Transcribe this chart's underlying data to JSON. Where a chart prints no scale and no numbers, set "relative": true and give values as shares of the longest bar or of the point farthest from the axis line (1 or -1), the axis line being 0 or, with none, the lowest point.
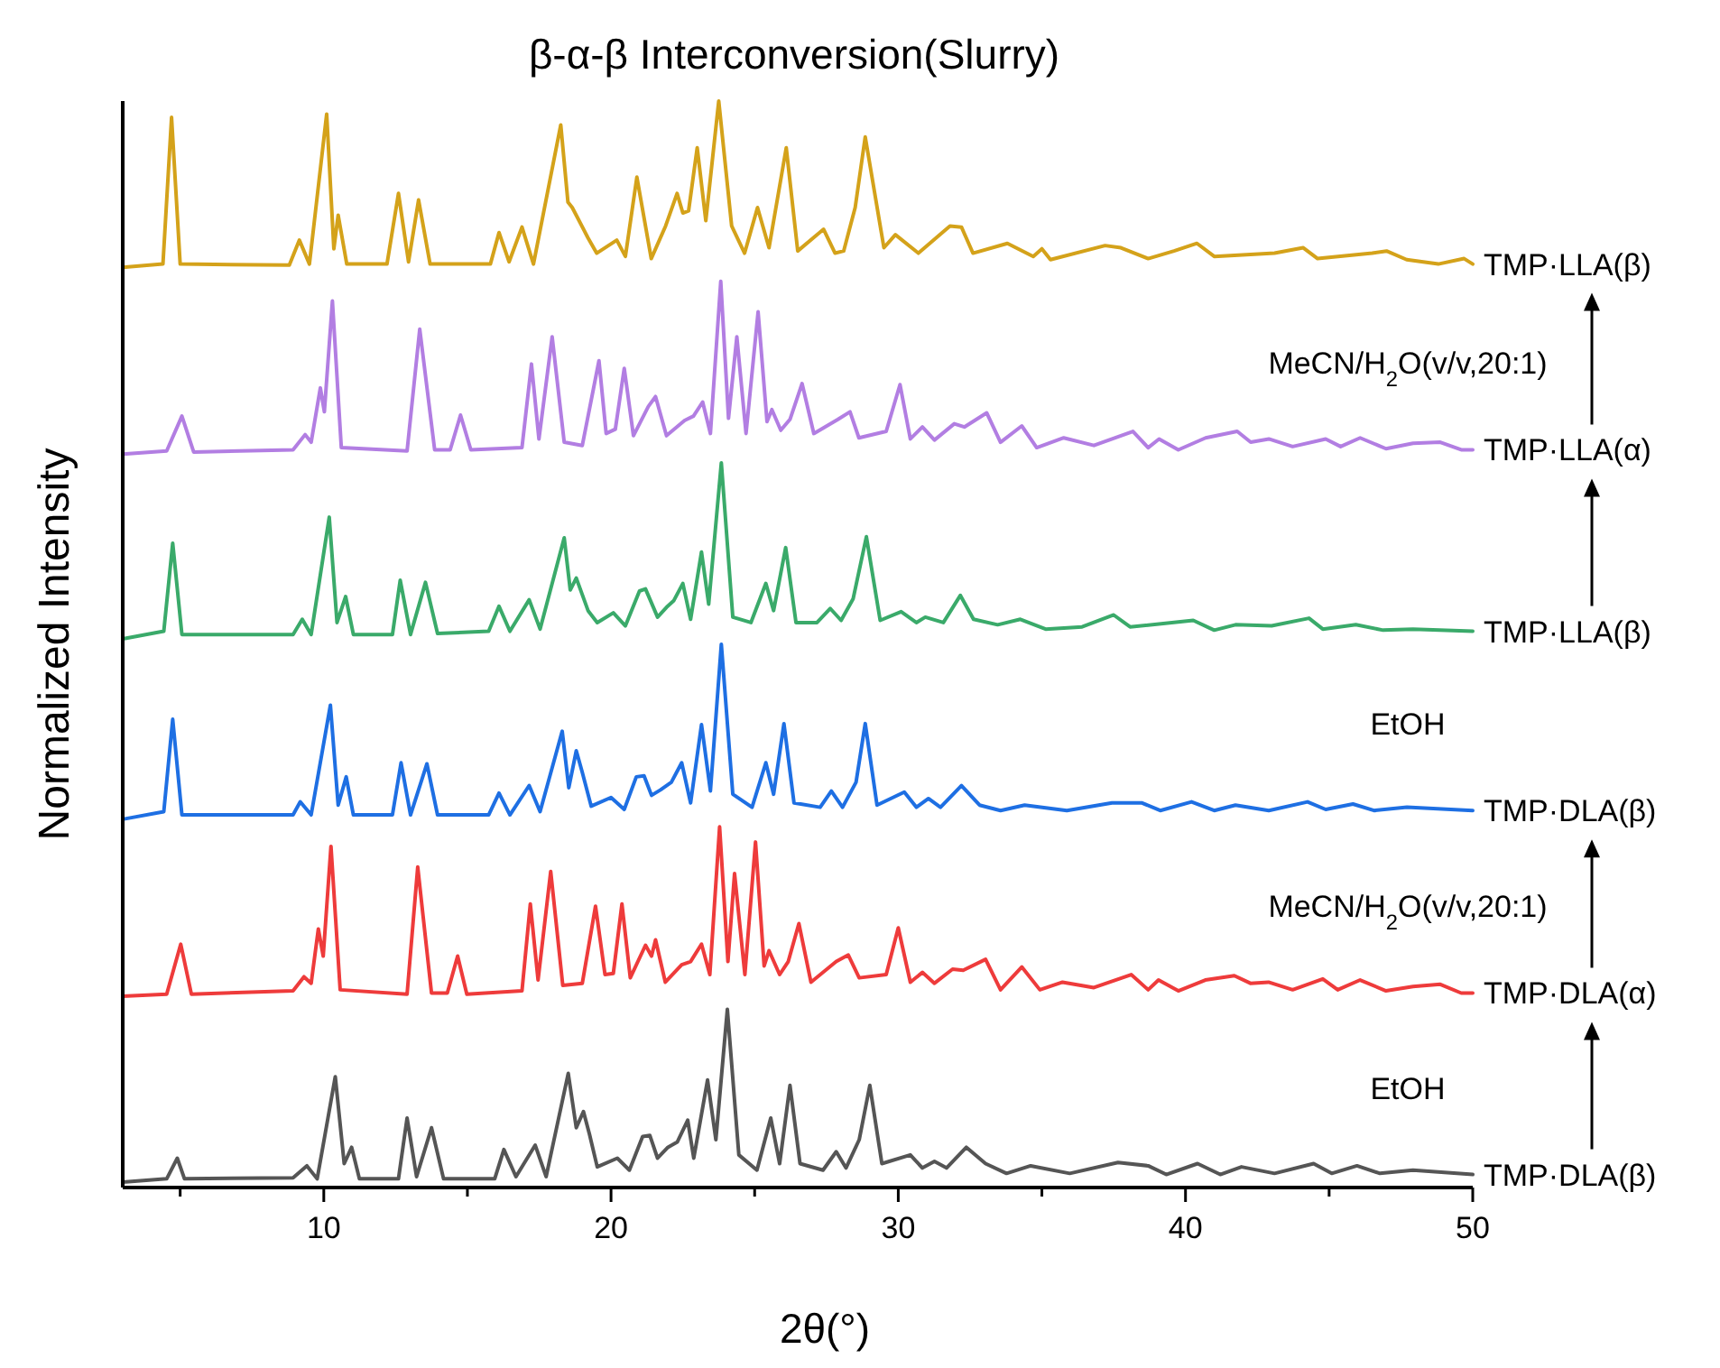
{
  "chart_data": {
    "type": "line",
    "title": "β-α-β Interconversion(Slurry)",
    "xlabel": "2θ(°)",
    "ylabel": "Normalized Intensity",
    "relative": true,
    "xlim": [
      3,
      50
    ],
    "xticks": [
      {
        "value": 5,
        "label": null
      },
      10,
      {
        "value": 15,
        "label": null
      },
      20,
      {
        "value": 25,
        "label": null
      },
      30,
      {
        "value": 35,
        "label": null
      },
      40,
      {
        "value": 45,
        "label": null
      },
      50
    ],
    "annotations": [
      "EtOH",
      "MeCN/H$_{2}$O(v/v,20:1)",
      "EtOH",
      "MeCN/H$_{2}$O(v/v,20:1)"
    ],
    "series": [
      {
        "name": "TMP·DLA(β)",
        "color": "#555555",
        "x": [
          3,
          4.53,
          4.9,
          5.15,
          8.93,
          9.41,
          9.77,
          10.4,
          10.71,
          10.97,
          11.24,
          12.6,
          12.9,
          13.23,
          13.75,
          14.17,
          15.95,
          16.27,
          16.69,
          17.36,
          17.74,
          18.51,
          18.79,
          19.04,
          19.25,
          19.52,
          20.22,
          20.64,
          21.1,
          21.35,
          21.62,
          21.98,
          22.31,
          22.67,
          22.88,
          23.36,
          23.65,
          24.05,
          24.45,
          25.08,
          25.56,
          25.87,
          26.23,
          26.58,
          27.38,
          27.84,
          28.18,
          28.64,
          29.01,
          29.43,
          30.42,
          30.84,
          31.26,
          31.68,
          32.37,
          33.04,
          33.77,
          34.61,
          35.97,
          37.65,
          38.7,
          39.33,
          40.42,
          41.21,
          41.95,
          43.1,
          44.46,
          45.09,
          45.97,
          46.77,
          47.92,
          50
        ],
        "values": [
          0.005,
          0.008,
          0.027,
          0.008,
          0.009,
          0.02,
          0.008,
          0.102,
          0.022,
          0.037,
          0.008,
          0.008,
          0.064,
          0.01,
          0.055,
          0.008,
          0.008,
          0.035,
          0.01,
          0.039,
          0.01,
          0.105,
          0.055,
          0.07,
          0.049,
          0.019,
          0.027,
          0.016,
          0.047,
          0.048,
          0.027,
          0.037,
          0.042,
          0.062,
          0.027,
          0.099,
          0.044,
          0.164,
          0.03,
          0.016,
          0.064,
          0.022,
          0.094,
          0.022,
          0.016,
          0.033,
          0.018,
          0.044,
          0.094,
          0.022,
          0.03,
          0.018,
          0.024,
          0.018,
          0.037,
          0.022,
          0.013,
          0.02,
          0.013,
          0.023,
          0.02,
          0.012,
          0.022,
          0.012,
          0.019,
          0.013,
          0.022,
          0.013,
          0.02,
          0.013,
          0.016,
          0.012
        ]
      },
      {
        "name": "TMP·DLA(α)",
        "color": "#ee3b3b",
        "x": [
          3,
          4.53,
          5.02,
          5.39,
          8.93,
          9.31,
          9.56,
          9.81,
          9.98,
          10.25,
          10.57,
          12.9,
          13.27,
          13.75,
          14.3,
          14.66,
          14.98,
          16.9,
          17.19,
          17.46,
          17.9,
          18.32,
          19,
          19.46,
          19.79,
          20.08,
          20.38,
          20.67,
          21.2,
          21.41,
          21.55,
          21.89,
          22.46,
          22.77,
          23.15,
          23.44,
          23.78,
          24.07,
          24.3,
          24.66,
          25.03,
          25.33,
          25.5,
          25.87,
          26.17,
          26.54,
          26.96,
          27.84,
          28.26,
          28.64,
          29.58,
          30,
          30.42,
          30.84,
          31.26,
          31.89,
          32.26,
          33.04,
          33.56,
          34.3,
          34.93,
          35.72,
          36.81,
          38.11,
          38.7,
          39.06,
          39.75,
          40.69,
          41.7,
          42.26,
          42.89,
          43.73,
          44.78,
          45.3,
          46.08,
          46.98,
          47.92,
          48.87,
          49.6,
          50
        ],
        "values": [
          0.176,
          0.178,
          0.224,
          0.178,
          0.181,
          0.194,
          0.188,
          0.238,
          0.213,
          0.314,
          0.182,
          0.178,
          0.295,
          0.179,
          0.179,
          0.213,
          0.178,
          0.181,
          0.261,
          0.191,
          0.291,
          0.186,
          0.188,
          0.259,
          0.196,
          0.197,
          0.261,
          0.193,
          0.223,
          0.213,
          0.228,
          0.189,
          0.205,
          0.208,
          0.224,
          0.196,
          0.332,
          0.208,
          0.289,
          0.196,
          0.318,
          0.204,
          0.218,
          0.196,
          0.208,
          0.243,
          0.189,
          0.208,
          0.214,
          0.193,
          0.196,
          0.239,
          0.189,
          0.198,
          0.188,
          0.201,
          0.2,
          0.21,
          0.182,
          0.203,
          0.182,
          0.189,
          0.184,
          0.196,
          0.182,
          0.191,
          0.181,
          0.191,
          0.195,
          0.188,
          0.189,
          0.182,
          0.192,
          0.182,
          0.191,
          0.181,
          0.185,
          0.187,
          0.179,
          0.179
        ]
      },
      {
        "name": "TMP·DLA(β)",
        "color": "#1e6fe3",
        "x": [
          3,
          4.43,
          4.74,
          5.06,
          8.93,
          9.18,
          9.56,
          10.23,
          10.5,
          10.78,
          11.03,
          12.39,
          12.69,
          13.02,
          13.59,
          13.96,
          15.74,
          16.1,
          16.48,
          17.15,
          17.53,
          18.3,
          18.53,
          18.79,
          19,
          19.31,
          20,
          20.46,
          20.88,
          21.15,
          21.41,
          21.72,
          22.1,
          22.46,
          22.77,
          23.15,
          23.46,
          23.84,
          24.24,
          24.91,
          25.39,
          25.66,
          26.02,
          26.37,
          27.28,
          27.67,
          28.06,
          28.53,
          28.85,
          29.26,
          30.21,
          30.63,
          31.05,
          31.47,
          32.2,
          32.83,
          33.56,
          34.4,
          35.87,
          37.44,
          38.49,
          39.12,
          40.21,
          41,
          41.74,
          42.9,
          44.25,
          44.88,
          45.83,
          46.56,
          47.71,
          50
        ],
        "values": [
          0.339,
          0.346,
          0.431,
          0.343,
          0.343,
          0.355,
          0.343,
          0.444,
          0.352,
          0.378,
          0.343,
          0.343,
          0.391,
          0.343,
          0.39,
          0.343,
          0.343,
          0.363,
          0.343,
          0.37,
          0.346,
          0.42,
          0.368,
          0.402,
          0.382,
          0.351,
          0.359,
          0.348,
          0.378,
          0.379,
          0.361,
          0.366,
          0.373,
          0.391,
          0.354,
          0.426,
          0.365,
          0.5,
          0.362,
          0.35,
          0.391,
          0.362,
          0.427,
          0.354,
          0.35,
          0.365,
          0.35,
          0.373,
          0.427,
          0.352,
          0.364,
          0.35,
          0.358,
          0.35,
          0.37,
          0.352,
          0.347,
          0.352,
          0.347,
          0.354,
          0.354,
          0.347,
          0.355,
          0.347,
          0.352,
          0.347,
          0.355,
          0.348,
          0.353,
          0.347,
          0.35,
          0.347
        ]
      },
      {
        "name": "TMP·LLA(β)",
        "color": "#3aaa6a",
        "x": [
          3,
          4.43,
          4.74,
          5.06,
          8.93,
          9.25,
          9.56,
          10.19,
          10.46,
          10.76,
          11.03,
          12.39,
          12.66,
          13.02,
          13.54,
          13.96,
          15.74,
          16.1,
          16.48,
          17.15,
          17.53,
          18.37,
          18.58,
          18.79,
          19.2,
          19.52,
          20.08,
          20.5,
          20.99,
          21.2,
          21.62,
          21.93,
          22.18,
          22.5,
          22.77,
          23.15,
          23.4,
          23.84,
          24.24,
          24.87,
          25.39,
          25.66,
          26.08,
          26.44,
          27.17,
          27.63,
          28.01,
          28.43,
          28.89,
          29.37,
          30.1,
          30.63,
          30.94,
          31.57,
          32.16,
          32.62,
          33.46,
          34.25,
          35.13,
          36.4,
          37.5,
          38.07,
          40.27,
          41,
          41.74,
          43,
          44.3,
          44.78,
          45.93,
          46.88,
          47.92,
          50
        ],
        "values": [
          0.505,
          0.512,
          0.593,
          0.509,
          0.509,
          0.523,
          0.509,
          0.617,
          0.52,
          0.544,
          0.509,
          0.509,
          0.559,
          0.509,
          0.557,
          0.51,
          0.512,
          0.535,
          0.512,
          0.541,
          0.514,
          0.598,
          0.55,
          0.561,
          0.531,
          0.52,
          0.529,
          0.517,
          0.549,
          0.551,
          0.525,
          0.534,
          0.54,
          0.556,
          0.523,
          0.585,
          0.537,
          0.667,
          0.525,
          0.52,
          0.556,
          0.531,
          0.589,
          0.52,
          0.52,
          0.533,
          0.522,
          0.542,
          0.599,
          0.522,
          0.53,
          0.52,
          0.525,
          0.52,
          0.545,
          0.523,
          0.518,
          0.523,
          0.514,
          0.516,
          0.527,
          0.516,
          0.522,
          0.513,
          0.518,
          0.517,
          0.524,
          0.514,
          0.518,
          0.513,
          0.514,
          0.512
        ]
      },
      {
        "name": "TMP·LLA(α)",
        "color": "#b27ee2",
        "x": [
          3,
          4.53,
          5.06,
          5.47,
          8.93,
          9.35,
          9.56,
          9.88,
          10.02,
          10.3,
          10.61,
          12.9,
          13.34,
          13.86,
          14.4,
          14.76,
          15.12,
          16.9,
          17.23,
          17.49,
          17.95,
          18.37,
          19,
          19.58,
          19.83,
          20.15,
          20.46,
          20.78,
          21.3,
          21.55,
          21.93,
          22.56,
          22.87,
          23.19,
          23.46,
          23.82,
          24.09,
          24.38,
          24.7,
          25.12,
          25.43,
          25.6,
          25.91,
          26.23,
          26.65,
          27.06,
          27.9,
          28.32,
          28.63,
          29.58,
          30.06,
          30.42,
          30.84,
          31.26,
          31.95,
          32.3,
          33.08,
          33.56,
          34.3,
          34.82,
          35.76,
          36.81,
          38.17,
          38.7,
          39.08,
          39.75,
          40.7,
          41.8,
          42.27,
          42.9,
          43.73,
          44.88,
          45.4,
          46.08,
          46.98,
          47.92,
          48.87,
          49.6,
          50
        ],
        "values": [
          0.675,
          0.678,
          0.71,
          0.677,
          0.679,
          0.693,
          0.686,
          0.736,
          0.714,
          0.816,
          0.681,
          0.678,
          0.79,
          0.679,
          0.679,
          0.711,
          0.679,
          0.681,
          0.758,
          0.689,
          0.783,
          0.686,
          0.683,
          0.761,
          0.694,
          0.698,
          0.754,
          0.692,
          0.719,
          0.728,
          0.692,
          0.706,
          0.71,
          0.723,
          0.694,
          0.834,
          0.708,
          0.783,
          0.694,
          0.806,
          0.705,
          0.716,
          0.697,
          0.707,
          0.74,
          0.694,
          0.707,
          0.714,
          0.69,
          0.696,
          0.739,
          0.689,
          0.7,
          0.688,
          0.703,
          0.7,
          0.713,
          0.686,
          0.701,
          0.681,
          0.69,
          0.683,
          0.696,
          0.681,
          0.689,
          0.679,
          0.69,
          0.696,
          0.686,
          0.689,
          0.682,
          0.689,
          0.682,
          0.69,
          0.68,
          0.685,
          0.686,
          0.679,
          0.679
        ]
      },
      {
        "name": "TMP·LLA(β)",
        "color": "#d4a21a",
        "x": [
          3,
          4.4,
          4.7,
          5,
          8.8,
          9.15,
          9.5,
          10.1,
          10.35,
          10.5,
          10.8,
          12.2,
          12.6,
          12.95,
          13.3,
          13.7,
          15.8,
          16.1,
          16.45,
          16.9,
          17.3,
          18.25,
          18.5,
          18.65,
          19.2,
          19.5,
          20.2,
          20.5,
          20.9,
          21.4,
          21.9,
          22.3,
          22.5,
          22.7,
          23,
          23.3,
          23.75,
          24.2,
          24.65,
          25.1,
          25.5,
          26.1,
          26.5,
          27.4,
          27.8,
          28.1,
          28.5,
          28.85,
          29.5,
          29.9,
          30.7,
          31.8,
          32.2,
          32.6,
          33.8,
          34.7,
          35,
          35.3,
          37.2,
          37.75,
          38.7,
          39.6,
          40.4,
          41,
          43.1,
          44.1,
          44.6,
          46.5,
          47,
          47.7,
          48.8,
          49.7,
          50
        ],
        "values": [
          0.847,
          0.85,
          0.985,
          0.85,
          0.849,
          0.872,
          0.85,
          0.988,
          0.864,
          0.895,
          0.85,
          0.85,
          0.915,
          0.852,
          0.909,
          0.85,
          0.85,
          0.879,
          0.852,
          0.884,
          0.85,
          0.978,
          0.907,
          0.902,
          0.874,
          0.86,
          0.872,
          0.857,
          0.93,
          0.855,
          0.885,
          0.915,
          0.897,
          0.899,
          0.957,
          0.89,
          1,
          0.885,
          0.86,
          0.902,
          0.865,
          0.957,
          0.862,
          0.882,
          0.86,
          0.862,
          0.902,
          0.967,
          0.865,
          0.877,
          0.86,
          0.885,
          0.884,
          0.86,
          0.869,
          0.857,
          0.864,
          0.854,
          0.867,
          0.865,
          0.855,
          0.862,
          0.869,
          0.857,
          0.86,
          0.865,
          0.855,
          0.86,
          0.862,
          0.854,
          0.85,
          0.855,
          0.85
        ]
      }
    ]
  }
}
